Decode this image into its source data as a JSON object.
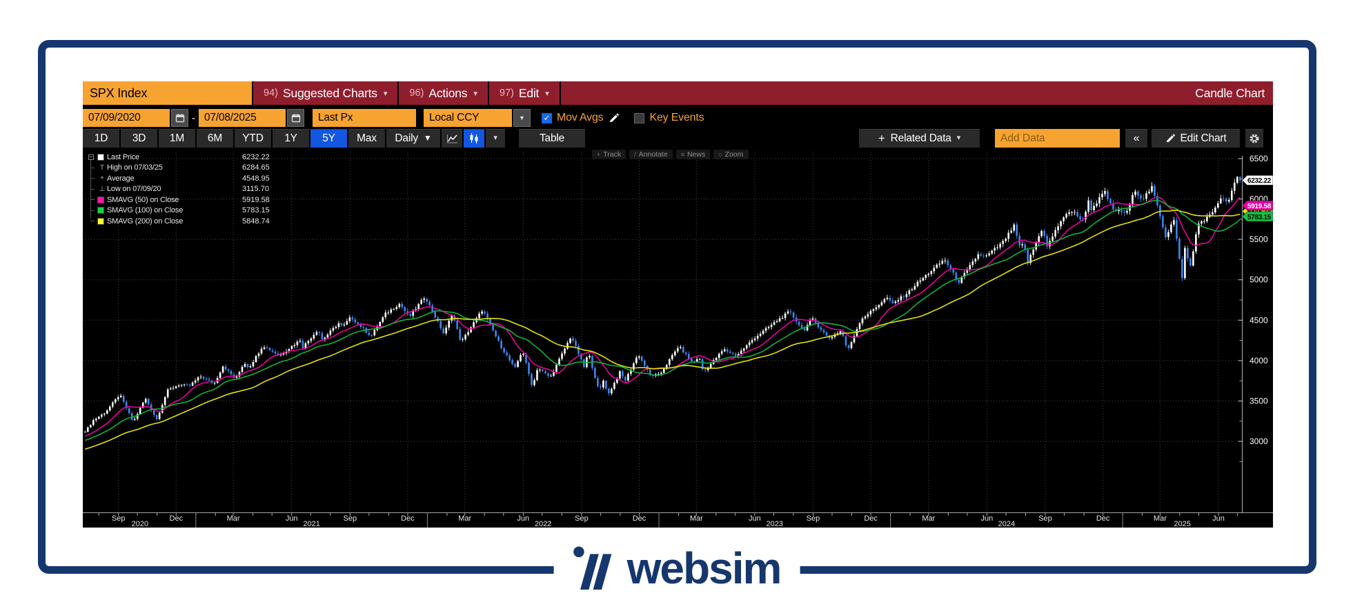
{
  "brand": {
    "name": "websim",
    "color": "#15376e"
  },
  "icons": {
    "caret_down": "▼",
    "caret_small": "▾",
    "chevrons_left": "«",
    "plus": "+",
    "check": "✓",
    "dash": "-"
  },
  "terminal": {
    "title_bar": {
      "ticker": "SPX Index",
      "menus": [
        {
          "id": "suggested-charts",
          "key": "94)",
          "label": "Suggested Charts"
        },
        {
          "id": "actions",
          "key": "96)",
          "label": "Actions"
        },
        {
          "id": "edit",
          "key": "97)",
          "label": "Edit"
        }
      ],
      "right_label": "Candle Chart"
    },
    "controls": {
      "date_from": "07/09/2020",
      "date_sep": "-",
      "date_to": "07/08/2025",
      "price_field": "Last Px",
      "currency": "Local CCY",
      "mov_avgs_label": "Mov Avgs",
      "mov_avgs_checked": true,
      "key_events_label": "Key Events",
      "key_events_checked": false
    },
    "toolbar": {
      "ranges": [
        "1D",
        "3D",
        "1M",
        "6M",
        "YTD",
        "1Y",
        "5Y",
        "Max"
      ],
      "selected_range": "5Y",
      "period": "Daily",
      "table_label": "Table",
      "related_data_label": "Related Data",
      "add_data_placeholder": "Add Data",
      "collapse_label": "«",
      "edit_chart_label": "Edit Chart"
    },
    "chart_toolbar": [
      {
        "id": "track",
        "label": "Track"
      },
      {
        "id": "annotate",
        "label": "Annotate"
      },
      {
        "id": "news",
        "label": "News"
      },
      {
        "id": "zoom",
        "label": "Zoom"
      }
    ],
    "legend": {
      "rows": [
        {
          "icon": "square",
          "color": "#ffffff",
          "label": "Last Price",
          "value": "6232.22"
        },
        {
          "icon": "high",
          "label": "High on 07/03/25",
          "value": "6284.65"
        },
        {
          "icon": "average",
          "label": "Average",
          "value": "4548.95"
        },
        {
          "icon": "low",
          "label": "Low on 07/09/20",
          "value": "3115.70"
        },
        {
          "icon": "square",
          "color": "#ff14a6",
          "label": "SMAVG (50)  on Close",
          "value": "5919.58"
        },
        {
          "icon": "square",
          "color": "#17cf45",
          "label": "SMAVG (100)  on Close",
          "value": "5783.15"
        },
        {
          "icon": "square",
          "color": "#ffff1e",
          "label": "SMAVG (200)  on Close",
          "value": "5848.74"
        }
      ]
    }
  },
  "chart_data": {
    "type": "candlestick",
    "symbol": "SPX Index",
    "period": "Daily",
    "range": "5Y",
    "x_range": [
      "2020-07-09",
      "2025-07-08"
    ],
    "y_axis": {
      "ticks": [
        3000,
        3500,
        4000,
        4500,
        5000,
        5500,
        6000,
        6500
      ],
      "minor_ticks": [
        2750,
        3250,
        3750,
        4250,
        4750,
        5250,
        5750,
        6250
      ]
    },
    "x_axis": {
      "quarters": [
        {
          "date": "2020-09-01",
          "label": "Sep"
        },
        {
          "date": "2020-12-01",
          "label": "Dec"
        },
        {
          "date": "2021-03-01",
          "label": "Mar"
        },
        {
          "date": "2021-06-01",
          "label": "Jun"
        },
        {
          "date": "2021-09-01",
          "label": "Sep"
        },
        {
          "date": "2021-12-01",
          "label": "Dec"
        },
        {
          "date": "2022-03-01",
          "label": "Mar"
        },
        {
          "date": "2022-06-01",
          "label": "Jun"
        },
        {
          "date": "2022-09-01",
          "label": "Sep"
        },
        {
          "date": "2022-12-01",
          "label": "Dec"
        },
        {
          "date": "2023-03-01",
          "label": "Mar"
        },
        {
          "date": "2023-06-01",
          "label": "Jun"
        },
        {
          "date": "2023-09-01",
          "label": "Sep"
        },
        {
          "date": "2023-12-01",
          "label": "Dec"
        },
        {
          "date": "2024-03-01",
          "label": "Mar"
        },
        {
          "date": "2024-06-01",
          "label": "Jun"
        },
        {
          "date": "2024-09-01",
          "label": "Sep"
        },
        {
          "date": "2024-12-01",
          "label": "Dec"
        },
        {
          "date": "2025-03-01",
          "label": "Mar"
        },
        {
          "date": "2025-06-01",
          "label": "Jun"
        }
      ],
      "years": [
        {
          "label": "2020",
          "from": "2020-07-09",
          "to": "2021-01-01"
        },
        {
          "label": "2021",
          "from": "2021-01-01",
          "to": "2022-01-01"
        },
        {
          "label": "2022",
          "from": "2022-01-01",
          "to": "2023-01-01"
        },
        {
          "label": "2023",
          "from": "2023-01-01",
          "to": "2024-01-01"
        },
        {
          "label": "2024",
          "from": "2024-01-01",
          "to": "2025-01-01"
        },
        {
          "label": "2025",
          "from": "2025-01-01",
          "to": "2025-07-08"
        }
      ]
    },
    "stats": {
      "last": 6232.22,
      "high": {
        "date": "07/03/25",
        "value": 6284.65
      },
      "average": 4548.95,
      "low": {
        "date": "07/09/20",
        "value": 3115.7
      }
    },
    "series": [
      {
        "name": "Last Price",
        "type": "candle",
        "up_color": "#ffffff",
        "down_color": "#3e87f0",
        "anchors": [
          [
            "2020-07-09",
            3116
          ],
          [
            "2020-07-22",
            3260
          ],
          [
            "2020-08-10",
            3360
          ],
          [
            "2020-09-02",
            3580
          ],
          [
            "2020-09-23",
            3237
          ],
          [
            "2020-10-12",
            3534
          ],
          [
            "2020-10-30",
            3270
          ],
          [
            "2020-11-16",
            3627
          ],
          [
            "2020-12-04",
            3699
          ],
          [
            "2020-12-21",
            3687
          ],
          [
            "2021-01-07",
            3804
          ],
          [
            "2021-01-29",
            3714
          ],
          [
            "2021-02-12",
            3935
          ],
          [
            "2021-03-04",
            3768
          ],
          [
            "2021-03-17",
            3974
          ],
          [
            "2021-03-25",
            3910
          ],
          [
            "2021-04-16",
            4185
          ],
          [
            "2021-05-12",
            4063
          ],
          [
            "2021-06-14",
            4255
          ],
          [
            "2021-06-18",
            4166
          ],
          [
            "2021-07-12",
            4385
          ],
          [
            "2021-07-19",
            4258
          ],
          [
            "2021-08-16",
            4480
          ],
          [
            "2021-08-19",
            4406
          ],
          [
            "2021-09-02",
            4537
          ],
          [
            "2021-10-04",
            4300
          ],
          [
            "2021-10-26",
            4575
          ],
          [
            "2021-11-18",
            4705
          ],
          [
            "2021-12-03",
            4538
          ],
          [
            "2021-12-28",
            4793
          ],
          [
            "2022-01-27",
            4327
          ],
          [
            "2022-02-09",
            4587
          ],
          [
            "2022-02-23",
            4225
          ],
          [
            "2022-03-29",
            4631
          ],
          [
            "2022-04-27",
            4175
          ],
          [
            "2022-05-19",
            3901
          ],
          [
            "2022-05-31",
            4132
          ],
          [
            "2022-06-16",
            3667
          ],
          [
            "2022-06-24",
            3912
          ],
          [
            "2022-07-14",
            3790
          ],
          [
            "2022-08-16",
            4305
          ],
          [
            "2022-09-06",
            3908
          ],
          [
            "2022-09-12",
            4110
          ],
          [
            "2022-09-30",
            3586
          ],
          [
            "2022-10-04",
            3791
          ],
          [
            "2022-10-14",
            3583
          ],
          [
            "2022-11-01",
            3856
          ],
          [
            "2022-11-09",
            3748
          ],
          [
            "2022-11-30",
            4080
          ],
          [
            "2022-12-19",
            3817
          ],
          [
            "2023-01-03",
            3824
          ],
          [
            "2023-02-02",
            4180
          ],
          [
            "2023-02-24",
            3970
          ],
          [
            "2023-03-06",
            4048
          ],
          [
            "2023-03-13",
            3856
          ],
          [
            "2023-04-14",
            4138
          ],
          [
            "2023-05-04",
            4061
          ],
          [
            "2023-06-02",
            4282
          ],
          [
            "2023-06-30",
            4450
          ],
          [
            "2023-07-27",
            4607
          ],
          [
            "2023-08-18",
            4370
          ],
          [
            "2023-09-01",
            4516
          ],
          [
            "2023-09-27",
            4274
          ],
          [
            "2023-10-17",
            4373
          ],
          [
            "2023-10-27",
            4117
          ],
          [
            "2023-11-17",
            4514
          ],
          [
            "2023-12-01",
            4594
          ],
          [
            "2023-12-28",
            4783
          ],
          [
            "2024-01-05",
            4697
          ],
          [
            "2024-01-31",
            4846
          ],
          [
            "2024-02-13",
            4953
          ],
          [
            "2024-03-28",
            5254
          ],
          [
            "2024-04-19",
            4967
          ],
          [
            "2024-05-21",
            5321
          ],
          [
            "2024-05-31",
            5278
          ],
          [
            "2024-06-28",
            5460
          ],
          [
            "2024-07-16",
            5667
          ],
          [
            "2024-07-25",
            5399
          ],
          [
            "2024-08-01",
            5446
          ],
          [
            "2024-08-05",
            5186
          ],
          [
            "2024-08-30",
            5648
          ],
          [
            "2024-09-06",
            5408
          ],
          [
            "2024-09-30",
            5762
          ],
          [
            "2024-10-18",
            5865
          ],
          [
            "2024-10-31",
            5705
          ],
          [
            "2024-11-11",
            5984
          ],
          [
            "2024-11-15",
            5871
          ],
          [
            "2024-12-06",
            6090
          ],
          [
            "2024-12-19",
            5867
          ],
          [
            "2025-01-10",
            5827
          ],
          [
            "2025-01-23",
            6118
          ],
          [
            "2025-02-03",
            5995
          ],
          [
            "2025-02-19",
            6144
          ],
          [
            "2025-03-13",
            5521
          ],
          [
            "2025-03-25",
            5777
          ],
          [
            "2025-04-08",
            4983
          ],
          [
            "2025-04-09",
            5457
          ],
          [
            "2025-04-21",
            5158
          ],
          [
            "2025-05-02",
            5687
          ],
          [
            "2025-05-23",
            5803
          ],
          [
            "2025-06-06",
            6000
          ],
          [
            "2025-06-20",
            5968
          ],
          [
            "2025-07-03",
            6279
          ],
          [
            "2025-07-08",
            6232.22
          ]
        ]
      },
      {
        "name": "SMAVG (50) on Close",
        "type": "sma",
        "window_days": 50,
        "color": "#e8009f",
        "last": 5919.58
      },
      {
        "name": "SMAVG (100) on Close",
        "type": "sma",
        "window_days": 100,
        "color": "#0fb33a",
        "last": 5783.15
      },
      {
        "name": "SMAVG (200) on Close",
        "type": "sma",
        "window_days": 200,
        "color": "#e3e30e",
        "last": 5848.74
      }
    ],
    "price_tags": [
      {
        "price": 5848.74,
        "label": "5848.74",
        "bg": "#e3e30e",
        "fg": "#000000"
      },
      {
        "price": 5919.58,
        "label": "5919.58",
        "bg": "#e8009f",
        "fg": "#ffffff"
      },
      {
        "price": 5783.15,
        "label": "5783.15",
        "bg": "#14c244",
        "fg": "#000000"
      },
      {
        "price": 6232.22,
        "label": "6232.22",
        "bg": "#ffffff",
        "fg": "#000000"
      }
    ]
  }
}
